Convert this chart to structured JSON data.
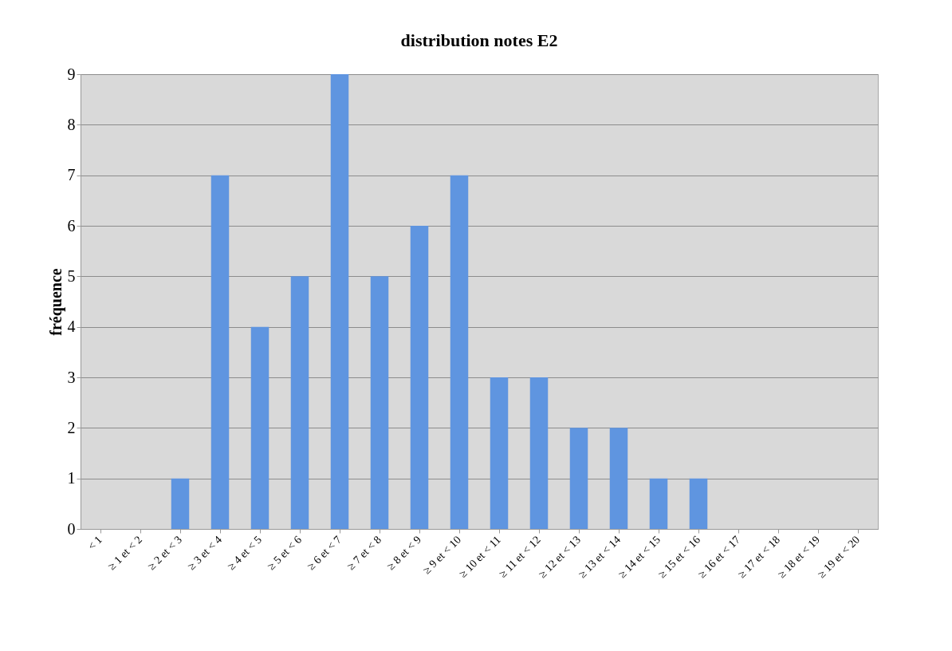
{
  "chart_data": {
    "type": "bar",
    "title": "distribution notes E2",
    "ylabel": "fréquence",
    "categories": [
      "< 1",
      "≥ 1 et < 2",
      "≥ 2 et < 3",
      "≥ 3 et < 4",
      "≥ 4 et < 5",
      "≥ 5 et < 6",
      "≥ 6 et < 7",
      "≥ 7 et < 8",
      "≥ 8 et < 9",
      "≥ 9 et < 10",
      "≥ 10 et < 11",
      "≥ 11 et < 12",
      "≥ 12 et < 13",
      "≥ 13 et < 14",
      "≥ 14 et < 15",
      "≥ 15 et < 16",
      "≥ 16 et < 17",
      "≥ 17 et < 18",
      "≥ 18 et < 19",
      "≥ 19 et < 20"
    ],
    "values": [
      0,
      0,
      1,
      7,
      4,
      5,
      9,
      5,
      6,
      7,
      3,
      3,
      2,
      2,
      1,
      1,
      0,
      0,
      0,
      0
    ],
    "color": "#5f95e0",
    "ylim": [
      0,
      9
    ],
    "yticks": [
      0,
      1,
      2,
      3,
      4,
      5,
      6,
      7,
      8,
      9
    ],
    "grid": true
  }
}
